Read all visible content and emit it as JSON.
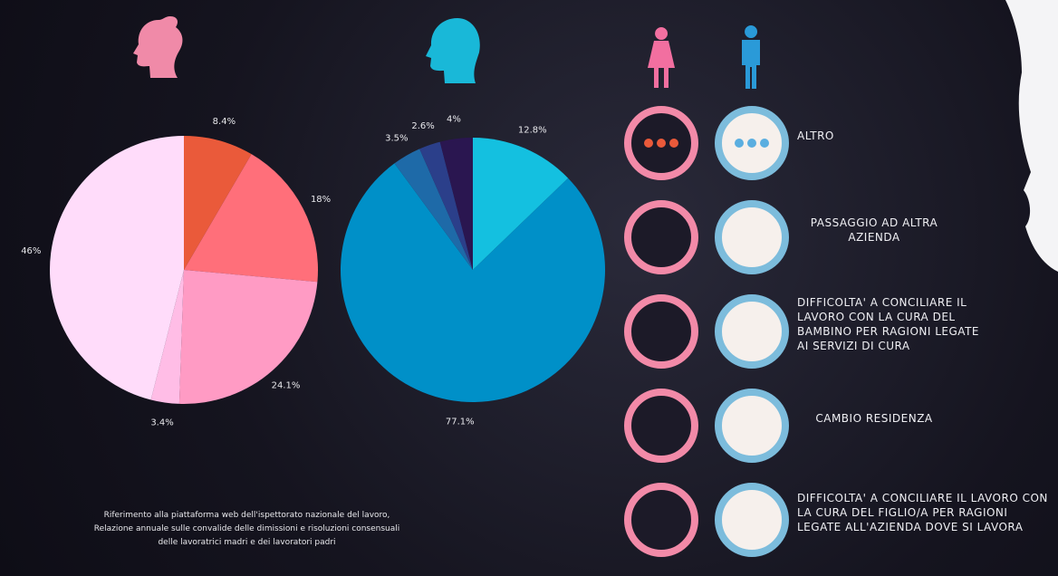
{
  "chart_data": [
    {
      "type": "pie",
      "categories": [
        "ALTRO",
        "PASSAGGIO AD ALTRA AZIENDA",
        "DIFFICOLTA' A CONCILIARE IL LAVORO CON LA CURA DEL BAMBINO PER RAGIONI LEGATE AI SERVIZI DI CURA",
        "CAMBIO RESIDENZA",
        "DIFFICOLTA' A CONCILIARE IL LAVORO CON LA CURA DEL FIGLIO/A PER RAGIONI LEGATE ALL'AZIENDA DOVE SI LAVORA"
      ],
      "values": [
        8.4,
        18,
        24.1,
        3.4,
        46
      ],
      "value_labels": [
        "8.4%",
        "18%",
        "24.1%",
        "3.4%",
        "46%"
      ],
      "colors": [
        "#ea5a3a",
        "#ff6f7a",
        "#ff9bc4",
        "#ffbde6",
        "#ffdcfa"
      ]
    },
    {
      "type": "pie",
      "values": [
        12.8,
        77.1,
        3.5,
        2.6,
        4
      ],
      "value_labels": [
        "12.8%",
        "77.1%",
        "3.5%",
        "2.6%",
        "4%"
      ],
      "colors": [
        "#14c0e0",
        "#0090c8",
        "#1e6aa8",
        "#2b3f8a",
        "#2a1650"
      ]
    }
  ],
  "footnote": [
    "Riferimento alla piattaforma web dell'ispettorato nazionale del lavoro,",
    "Relazione annuale sulle convalide delle dimissioni e risoluzioni consensuali",
    "delle lavoratrici madri e dei lavoratori padri"
  ]
}
